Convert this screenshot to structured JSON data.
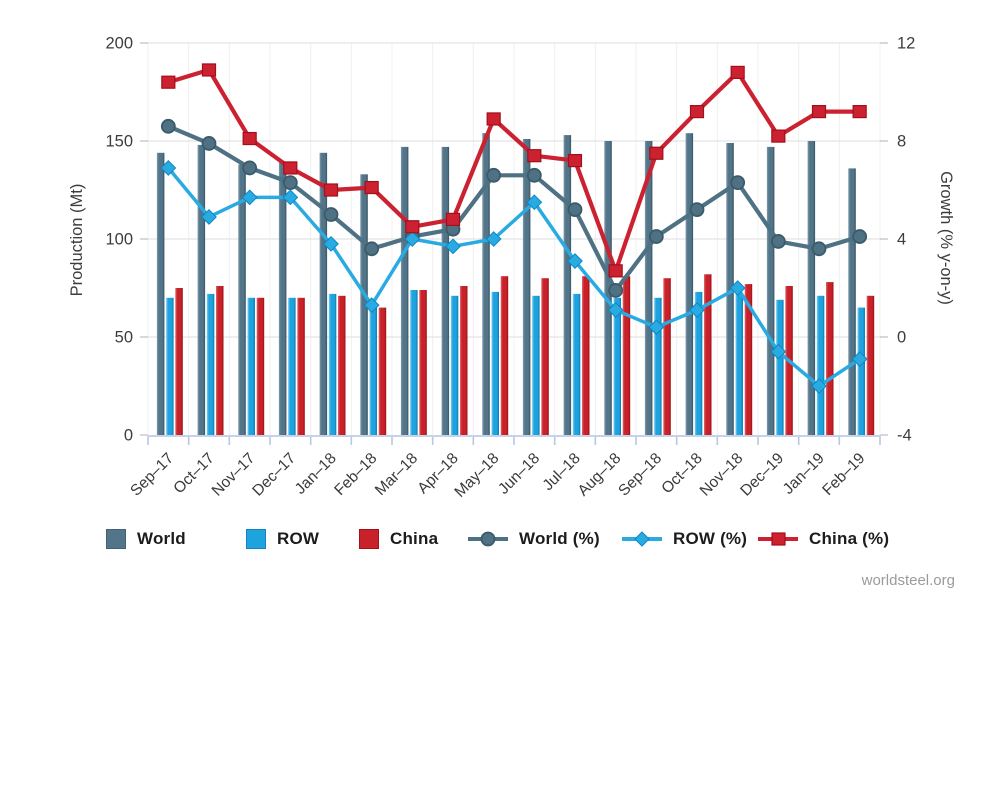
{
  "page": {
    "source_label": "worldsteel.org",
    "background": "#ffffff"
  },
  "chart_data": {
    "type": "combo-bar-line",
    "title": "",
    "categories": [
      "Sep–17",
      "Oct–17",
      "Nov–17",
      "Dec–17",
      "Jan–18",
      "Feb–18",
      "Mar–18",
      "Apr–18",
      "May–18",
      "Jun–18",
      "Jul–18",
      "Aug–18",
      "Sep–18",
      "Oct–18",
      "Nov–18",
      "Dec–19",
      "Jan–19",
      "Feb–19"
    ],
    "bar_series": [
      {
        "name": "World",
        "axis": "left",
        "color": "#53758a",
        "highlight": "#7e9aa9",
        "shade": "#365461",
        "border": "#44616f",
        "values": [
          144,
          148,
          138,
          139,
          144,
          133,
          147,
          147,
          154,
          151,
          153,
          150,
          150,
          154,
          149,
          147,
          150,
          136
        ]
      },
      {
        "name": "ROW",
        "axis": "left",
        "color": "#1ea3de",
        "highlight": "#82cff1",
        "shade": "#0f7ab2",
        "border": "#1286c0",
        "values": [
          70,
          72,
          70,
          70,
          72,
          66,
          74,
          71,
          73,
          71,
          72,
          70,
          70,
          73,
          72,
          69,
          71,
          65
        ]
      },
      {
        "name": "China",
        "axis": "left",
        "color": "#c92129",
        "highlight": "#de686d",
        "shade": "#9c1016",
        "border": "#a31019",
        "values": [
          75,
          76,
          70,
          70,
          71,
          65,
          74,
          76,
          81,
          80,
          81,
          81,
          80,
          82,
          77,
          76,
          78,
          71
        ]
      }
    ],
    "line_series": [
      {
        "name": "World (%)",
        "axis": "right",
        "marker": "circle",
        "color": "#4e7183",
        "marker_stroke": "#3b5a6a",
        "values": [
          8.6,
          7.9,
          6.9,
          6.3,
          5.0,
          3.6,
          4.1,
          4.4,
          6.6,
          6.6,
          5.2,
          1.9,
          4.1,
          5.2,
          6.3,
          3.9,
          3.6,
          4.1
        ]
      },
      {
        "name": "ROW (%)",
        "axis": "right",
        "marker": "diamond",
        "color": "#29abe2",
        "marker_stroke": "#0e86c5",
        "values": [
          6.9,
          4.9,
          5.7,
          5.7,
          3.8,
          1.3,
          4.0,
          3.7,
          4.0,
          5.5,
          3.1,
          1.1,
          0.4,
          1.1,
          2.0,
          -0.6,
          -2.0,
          -0.9
        ]
      },
      {
        "name": "China (%)",
        "axis": "right",
        "marker": "square",
        "color": "#cb2130",
        "marker_stroke": "#a30f1b",
        "values": [
          10.4,
          10.9,
          8.1,
          6.9,
          6.0,
          6.1,
          4.5,
          4.8,
          8.9,
          7.4,
          7.2,
          2.7,
          7.5,
          9.2,
          10.8,
          8.2,
          9.2,
          9.2
        ]
      }
    ],
    "left_axis": {
      "label": "Production (Mt)",
      "range": [
        0,
        200
      ],
      "ticks": [
        0,
        50,
        100,
        150,
        200
      ]
    },
    "right_axis": {
      "label": "Growth (% y-on-y)",
      "range": [
        -4,
        12
      ],
      "ticks": [
        -4,
        0,
        4,
        8,
        12
      ]
    },
    "legend": [
      "World",
      "ROW",
      "China",
      "World (%)",
      "ROW (%)",
      "China (%)"
    ],
    "grid": true,
    "legend_position": "bottom",
    "colors": {
      "h_grid": "#e4e4e4",
      "v_grid": "#f0f0f0",
      "x_axis_line": "#c6d2ea",
      "x_tick": "#b5c7e4",
      "y_tick": "#c4c4c4",
      "tick_text": "#3d3d3d",
      "axis_title_text": "#3d3d3d"
    }
  }
}
